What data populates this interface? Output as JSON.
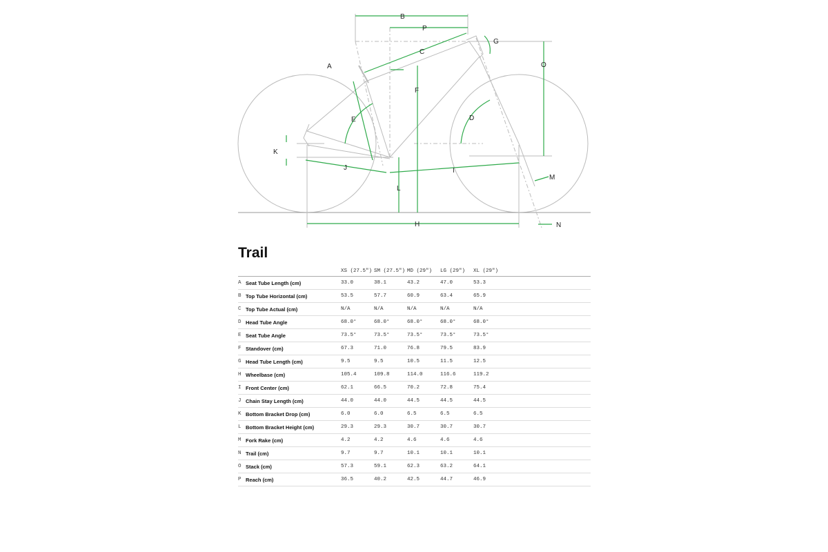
{
  "diagram": {
    "accent_color": "#2eaa4a",
    "labels": [
      "A",
      "B",
      "C",
      "D",
      "E",
      "F",
      "G",
      "H",
      "I",
      "J",
      "K",
      "L",
      "M",
      "N",
      "O",
      "P"
    ]
  },
  "title": "Trail",
  "table": {
    "columns": [
      "XS (27.5\")",
      "SM (27.5\")",
      "MD (29\")",
      "LG (29\")",
      "XL (29\")"
    ],
    "rows": [
      {
        "key": "A",
        "name": "Seat Tube Length (cm)",
        "values": [
          "33.0",
          "38.1",
          "43.2",
          "47.0",
          "53.3"
        ]
      },
      {
        "key": "B",
        "name": "Top Tube Horizontal (cm)",
        "values": [
          "53.5",
          "57.7",
          "60.9",
          "63.4",
          "65.9"
        ]
      },
      {
        "key": "C",
        "name": "Top Tube Actual (cm)",
        "values": [
          "N/A",
          "N/A",
          "N/A",
          "N/A",
          "N/A"
        ]
      },
      {
        "key": "D",
        "name": "Head Tube Angle",
        "values": [
          "68.0°",
          "68.0°",
          "68.0°",
          "68.0°",
          "68.0°"
        ]
      },
      {
        "key": "E",
        "name": "Seat Tube Angle",
        "values": [
          "73.5°",
          "73.5°",
          "73.5°",
          "73.5°",
          "73.5°"
        ]
      },
      {
        "key": "F",
        "name": "Standover (cm)",
        "values": [
          "67.3",
          "71.0",
          "76.8",
          "79.5",
          "83.9"
        ]
      },
      {
        "key": "G",
        "name": "Head Tube Length (cm)",
        "values": [
          "9.5",
          "9.5",
          "10.5",
          "11.5",
          "12.5"
        ]
      },
      {
        "key": "H",
        "name": "Wheelbase (cm)",
        "values": [
          "105.4",
          "109.8",
          "114.0",
          "116.6",
          "119.2"
        ]
      },
      {
        "key": "I",
        "name": "Front Center (cm)",
        "values": [
          "62.1",
          "66.5",
          "70.2",
          "72.8",
          "75.4"
        ]
      },
      {
        "key": "J",
        "name": "Chain Stay Length (cm)",
        "values": [
          "44.0",
          "44.0",
          "44.5",
          "44.5",
          "44.5"
        ]
      },
      {
        "key": "K",
        "name": "Bottom Bracket Drop (cm)",
        "values": [
          "6.0",
          "6.0",
          "6.5",
          "6.5",
          "6.5"
        ]
      },
      {
        "key": "L",
        "name": "Bottom Bracket Height (cm)",
        "values": [
          "29.3",
          "29.3",
          "30.7",
          "30.7",
          "30.7"
        ]
      },
      {
        "key": "M",
        "name": "Fork Rake (cm)",
        "values": [
          "4.2",
          "4.2",
          "4.6",
          "4.6",
          "4.6"
        ]
      },
      {
        "key": "N",
        "name": "Trail (cm)",
        "values": [
          "9.7",
          "9.7",
          "10.1",
          "10.1",
          "10.1"
        ]
      },
      {
        "key": "O",
        "name": "Stack (cm)",
        "values": [
          "57.3",
          "59.1",
          "62.3",
          "63.2",
          "64.1"
        ]
      },
      {
        "key": "P",
        "name": "Reach (cm)",
        "values": [
          "36.5",
          "40.2",
          "42.5",
          "44.7",
          "46.9"
        ]
      }
    ]
  }
}
